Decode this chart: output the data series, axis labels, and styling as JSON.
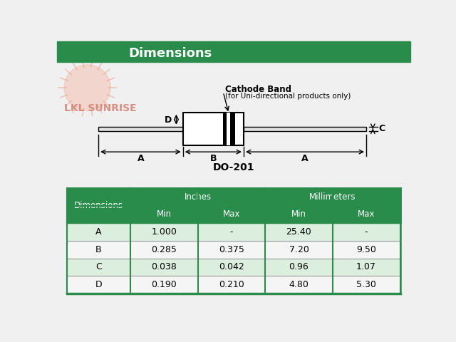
{
  "title": "Dimensions",
  "title_bg": "#2a8c4a",
  "title_color": "white",
  "bg_color": "#f0f0f0",
  "diagram_label": "DO-201",
  "cathode_band_label": "Cathode Band",
  "cathode_sub_label": "(for Uni-directional products only)",
  "table_header_bg": "#2a8c4a",
  "table_header_color": "white",
  "table_row_A": "#dceedd",
  "table_row_B": "#f5f5f5",
  "table_row_C": "#dceedd",
  "table_row_D": "#f5f5f5",
  "table_border_color": "#2a8c4a",
  "dimensions_col": [
    "A",
    "B",
    "C",
    "D"
  ],
  "inches_min": [
    "1.000",
    "0.285",
    "0.038",
    "0.190"
  ],
  "inches_max": [
    "-",
    "0.375",
    "0.042",
    "0.210"
  ],
  "mm_min": [
    "25.40",
    "7.20",
    "0.96",
    "4.80"
  ],
  "mm_max": [
    "-",
    "9.50",
    "1.07",
    "5.30"
  ],
  "logo_text": "LKL SUNRISE",
  "logo_color": "#d07060",
  "logo_sun_color": "#f5c0b0",
  "watermark_color": "#e8d0c8"
}
